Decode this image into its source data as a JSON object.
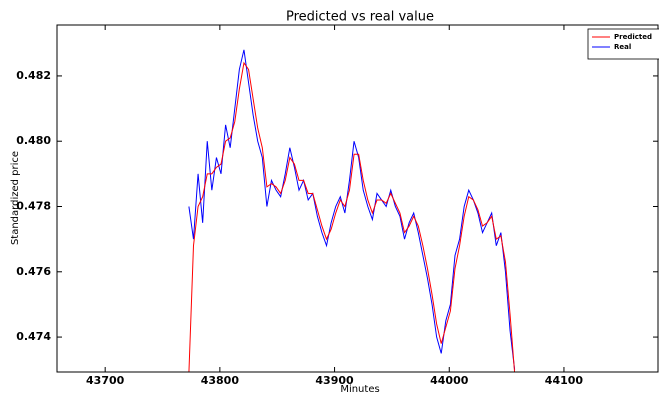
{
  "chart_data": {
    "type": "line",
    "title": "Predicted vs real value",
    "x_label": "Minutes",
    "y_label": "Standardized price",
    "x": [
      43773,
      43777,
      43781,
      43785,
      43789,
      43793,
      43797,
      43801,
      43805,
      43809,
      43813,
      43817,
      43821,
      43825,
      43829,
      43833,
      43837,
      43841,
      43845,
      43849,
      43853,
      43857,
      43861,
      43865,
      43869,
      43873,
      43877,
      43881,
      43885,
      43889,
      43893,
      43897,
      43901,
      43905,
      43909,
      43913,
      43917,
      43921,
      43925,
      43929,
      43933,
      43937,
      43941,
      43945,
      43949,
      43953,
      43957,
      43961,
      43965,
      43969,
      43973,
      43977,
      43981,
      43985,
      43989,
      43993,
      43997,
      44001,
      44005,
      44009,
      44013,
      44017,
      44021,
      44025,
      44029,
      44033,
      44037,
      44041,
      44045,
      44049,
      44053,
      44057
    ],
    "series": [
      {
        "name": "Predicted",
        "color": "#ff0000",
        "values": [
          0.4729,
          0.4768,
          0.478,
          0.4783,
          0.479,
          0.479,
          0.4792,
          0.4793,
          0.48,
          0.4801,
          0.4806,
          0.4816,
          0.4824,
          0.4822,
          0.4813,
          0.4804,
          0.4798,
          0.4786,
          0.4787,
          0.4786,
          0.4784,
          0.4788,
          0.4795,
          0.4793,
          0.4788,
          0.4788,
          0.4784,
          0.4784,
          0.4779,
          0.4774,
          0.477,
          0.4773,
          0.4778,
          0.4782,
          0.478,
          0.4785,
          0.4796,
          0.4796,
          0.4788,
          0.4782,
          0.4778,
          0.4782,
          0.4782,
          0.4781,
          0.4784,
          0.4781,
          0.4778,
          0.4772,
          0.4774,
          0.4777,
          0.4774,
          0.4768,
          0.4761,
          0.4753,
          0.4744,
          0.4738,
          0.4743,
          0.4748,
          0.4761,
          0.4768,
          0.4777,
          0.4783,
          0.4782,
          0.4779,
          0.4774,
          0.4775,
          0.4777,
          0.477,
          0.4771,
          0.4763,
          0.4747,
          0.4729
        ]
      },
      {
        "name": "Real",
        "color": "#0000ff",
        "values": [
          0.478,
          0.477,
          0.479,
          0.4775,
          0.48,
          0.4785,
          0.4795,
          0.479,
          0.4805,
          0.4798,
          0.481,
          0.4822,
          0.4828,
          0.4818,
          0.4808,
          0.48,
          0.4795,
          0.478,
          0.4788,
          0.4785,
          0.4783,
          0.479,
          0.4798,
          0.4792,
          0.4785,
          0.4788,
          0.4782,
          0.4784,
          0.4777,
          0.4772,
          0.4768,
          0.4775,
          0.478,
          0.4783,
          0.4778,
          0.4788,
          0.48,
          0.4795,
          0.4785,
          0.478,
          0.4776,
          0.4784,
          0.4782,
          0.478,
          0.4785,
          0.478,
          0.4777,
          0.477,
          0.4775,
          0.4778,
          0.4772,
          0.4765,
          0.4758,
          0.475,
          0.474,
          0.4735,
          0.4745,
          0.475,
          0.4765,
          0.477,
          0.478,
          0.4785,
          0.4782,
          0.4778,
          0.4772,
          0.4775,
          0.4778,
          0.4768,
          0.4772,
          0.476,
          0.4742,
          0.473
        ]
      }
    ],
    "xlim": [
      43658,
      44182
    ],
    "xticks": [
      43700,
      43800,
      43900,
      44000,
      44100
    ],
    "ylim": [
      0.47293,
      0.48356
    ],
    "yticks": [
      0.474,
      0.476,
      0.478,
      0.48,
      {
        "value": 0.48,
        "label": "0.480"
      },
      0.482
    ],
    "legend": "upper right"
  }
}
